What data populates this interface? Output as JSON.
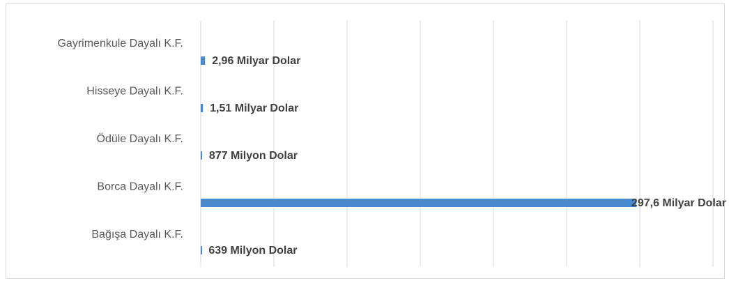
{
  "chart_data": {
    "type": "barh",
    "categories": [
      "Gayrimenkule Dayalı K.F.",
      "Hisseye Dayalı K.F.",
      "Ödüle Dayalı K.F.",
      "Borca Dayalı K.F.",
      "Bağışa Dayalı K.F."
    ],
    "values": [
      2960000000,
      1510000000,
      877000000,
      297600000000,
      639000000
    ],
    "value_labels": [
      "2,96 Milyar Dolar",
      "1,51 Milyar Dolar",
      "877 Milyon Dolar",
      "297,6 Milyar Dolar",
      "639 Milyon Dolar"
    ],
    "color": "#4a8bcf",
    "xlim": [
      0,
      350000000000
    ],
    "xticks": [
      0,
      50000000000,
      100000000000,
      150000000000,
      200000000000,
      250000000000,
      300000000000,
      350000000000
    ],
    "grid": true
  }
}
